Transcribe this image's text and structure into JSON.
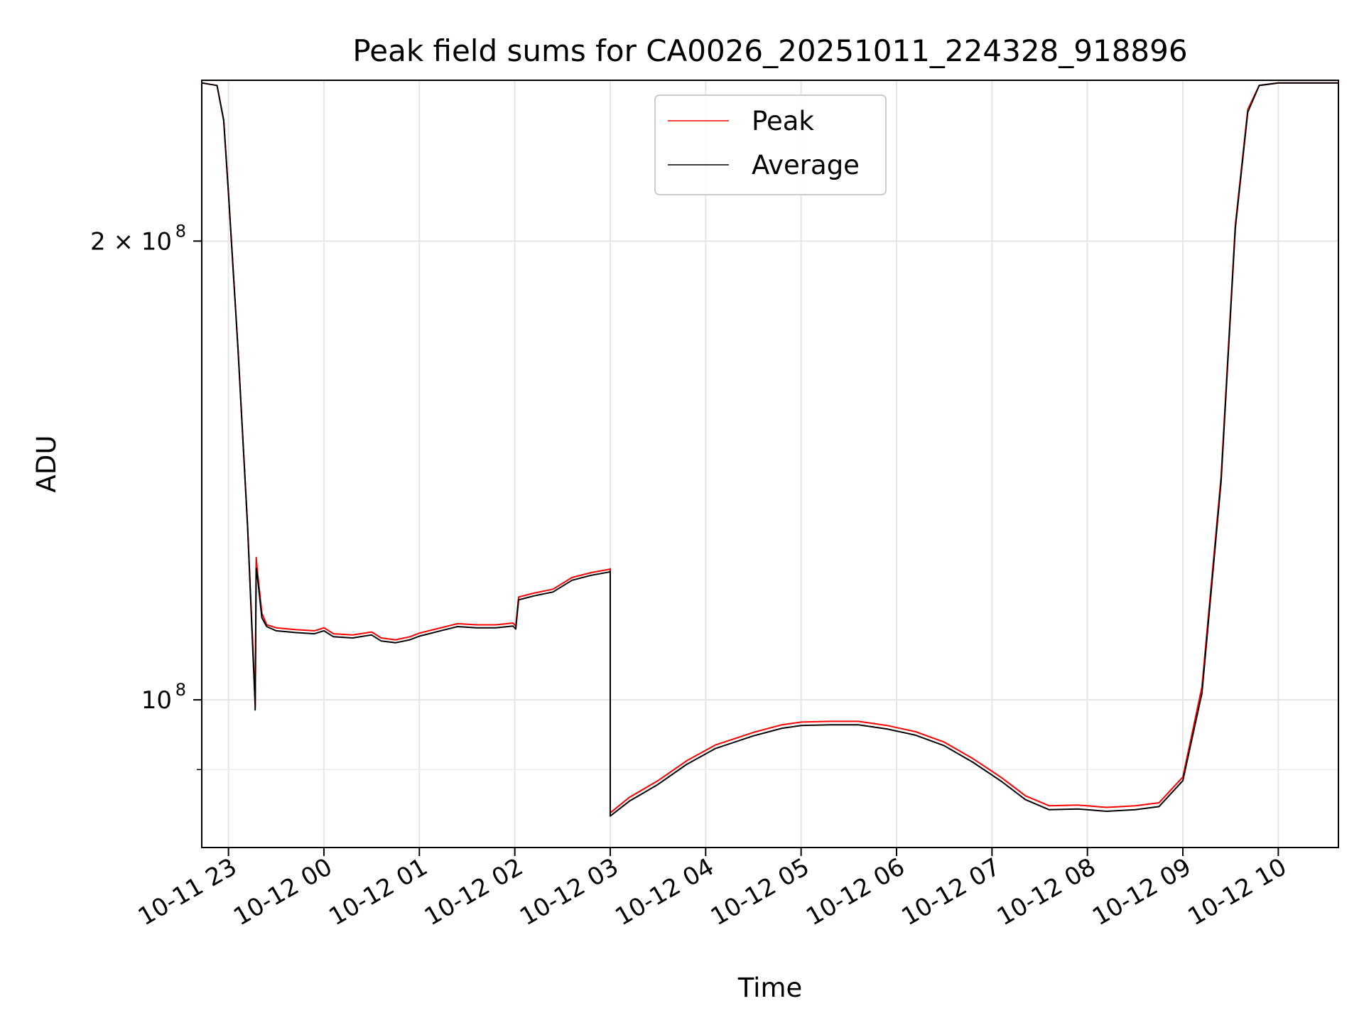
{
  "chart_data": {
    "type": "line",
    "title": "Peak field sums for CA0026_20251011_224328_918896",
    "xlabel": "Time",
    "ylabel": "ADU",
    "yscale": "log",
    "ylim": [
      80000000,
      255000000
    ],
    "xlim_hours": [
      -0.28,
      11.63
    ],
    "x_origin": "2025-10-11 23:00",
    "x_tick_hours": [
      0,
      1,
      2,
      3,
      4,
      5,
      6,
      7,
      8,
      9,
      10,
      11
    ],
    "x_tick_labels": [
      "10-11 23",
      "10-12 00",
      "10-12 01",
      "10-12 02",
      "10-12 03",
      "10-12 04",
      "10-12 05",
      "10-12 06",
      "10-12 07",
      "10-12 08",
      "10-12 09",
      "10-12 10"
    ],
    "y_major_ticks": [
      {
        "value": 100000000,
        "base": "10",
        "exp": "8"
      },
      {
        "value": 200000000,
        "base": "2 × 10",
        "exp": "8"
      }
    ],
    "y_minor_ticks": [
      90000000
    ],
    "grid": true,
    "legend": {
      "position": "upper-center"
    },
    "series": [
      {
        "name": "Peak",
        "color": "#ff0000",
        "points": [
          [
            -0.28,
            254000000
          ],
          [
            -0.12,
            253000000
          ],
          [
            -0.05,
            240000000
          ],
          [
            0.0,
            215000000
          ],
          [
            0.1,
            170000000
          ],
          [
            0.2,
            130000000
          ],
          [
            0.28,
            100000000
          ],
          [
            0.28,
            99000000
          ],
          [
            0.29,
            124000000
          ],
          [
            0.3,
            122000000
          ],
          [
            0.35,
            114000000
          ],
          [
            0.4,
            112000000
          ],
          [
            0.5,
            111500000
          ],
          [
            0.7,
            111200000
          ],
          [
            0.9,
            111000000
          ],
          [
            1.0,
            111500000
          ],
          [
            1.1,
            110500000
          ],
          [
            1.3,
            110300000
          ],
          [
            1.5,
            110800000
          ],
          [
            1.6,
            109800000
          ],
          [
            1.75,
            109500000
          ],
          [
            1.9,
            110000000
          ],
          [
            2.0,
            110600000
          ],
          [
            2.2,
            111400000
          ],
          [
            2.4,
            112200000
          ],
          [
            2.6,
            112000000
          ],
          [
            2.8,
            112000000
          ],
          [
            2.98,
            112300000
          ],
          [
            3.01,
            111800000
          ],
          [
            3.04,
            116800000
          ],
          [
            3.2,
            117500000
          ],
          [
            3.4,
            118200000
          ],
          [
            3.6,
            120300000
          ],
          [
            3.8,
            121200000
          ],
          [
            3.99,
            121800000
          ],
          [
            4.0,
            121900000
          ],
          [
            4.0,
            84300000
          ],
          [
            4.2,
            86300000
          ],
          [
            4.5,
            88500000
          ],
          [
            4.8,
            91200000
          ],
          [
            5.1,
            93400000
          ],
          [
            5.5,
            95200000
          ],
          [
            5.8,
            96300000
          ],
          [
            6.0,
            96700000
          ],
          [
            6.3,
            96800000
          ],
          [
            6.6,
            96800000
          ],
          [
            6.9,
            96200000
          ],
          [
            7.2,
            95300000
          ],
          [
            7.5,
            93800000
          ],
          [
            7.8,
            91500000
          ],
          [
            8.1,
            88900000
          ],
          [
            8.35,
            86500000
          ],
          [
            8.6,
            85200000
          ],
          [
            8.9,
            85300000
          ],
          [
            9.2,
            85000000
          ],
          [
            9.5,
            85200000
          ],
          [
            9.75,
            85600000
          ],
          [
            10.0,
            89000000
          ],
          [
            10.2,
            102000000
          ],
          [
            10.4,
            140000000
          ],
          [
            10.55,
            205000000
          ],
          [
            10.68,
            244000000
          ],
          [
            10.8,
            253000000
          ],
          [
            11.0,
            254000000
          ],
          [
            11.63,
            254000000
          ]
        ]
      },
      {
        "name": "Average",
        "color": "#000000",
        "points": [
          [
            -0.28,
            254000000
          ],
          [
            -0.12,
            253000000
          ],
          [
            -0.05,
            240000000
          ],
          [
            0.0,
            215000000
          ],
          [
            0.1,
            170000000
          ],
          [
            0.2,
            130000000
          ],
          [
            0.28,
            99000000
          ],
          [
            0.28,
            98500000
          ],
          [
            0.29,
            122000000
          ],
          [
            0.3,
            121000000
          ],
          [
            0.35,
            113200000
          ],
          [
            0.4,
            111700000
          ],
          [
            0.5,
            111000000
          ],
          [
            0.7,
            110700000
          ],
          [
            0.9,
            110500000
          ],
          [
            1.0,
            111000000
          ],
          [
            1.1,
            110000000
          ],
          [
            1.3,
            109800000
          ],
          [
            1.5,
            110300000
          ],
          [
            1.6,
            109300000
          ],
          [
            1.75,
            109000000
          ],
          [
            1.9,
            109500000
          ],
          [
            2.0,
            110100000
          ],
          [
            2.2,
            110900000
          ],
          [
            2.4,
            111700000
          ],
          [
            2.6,
            111500000
          ],
          [
            2.8,
            111500000
          ],
          [
            2.98,
            111800000
          ],
          [
            3.01,
            111300000
          ],
          [
            3.04,
            116300000
          ],
          [
            3.2,
            117000000
          ],
          [
            3.4,
            117700000
          ],
          [
            3.6,
            119800000
          ],
          [
            3.8,
            120700000
          ],
          [
            3.99,
            121300000
          ],
          [
            4.0,
            121400000
          ],
          [
            4.0,
            83900000
          ],
          [
            4.2,
            85800000
          ],
          [
            4.5,
            88000000
          ],
          [
            4.8,
            90700000
          ],
          [
            5.1,
            92900000
          ],
          [
            5.5,
            94700000
          ],
          [
            5.8,
            95800000
          ],
          [
            6.0,
            96200000
          ],
          [
            6.3,
            96300000
          ],
          [
            6.6,
            96300000
          ],
          [
            6.9,
            95700000
          ],
          [
            7.2,
            94800000
          ],
          [
            7.5,
            93300000
          ],
          [
            7.8,
            91000000
          ],
          [
            8.1,
            88400000
          ],
          [
            8.35,
            86000000
          ],
          [
            8.6,
            84700000
          ],
          [
            8.9,
            84800000
          ],
          [
            9.2,
            84500000
          ],
          [
            9.5,
            84700000
          ],
          [
            9.75,
            85100000
          ],
          [
            10.0,
            88500000
          ],
          [
            10.2,
            101000000
          ],
          [
            10.4,
            139000000
          ],
          [
            10.55,
            204000000
          ],
          [
            10.68,
            243000000
          ],
          [
            10.8,
            253000000
          ],
          [
            11.0,
            254000000
          ],
          [
            11.63,
            254000000
          ]
        ]
      }
    ]
  }
}
